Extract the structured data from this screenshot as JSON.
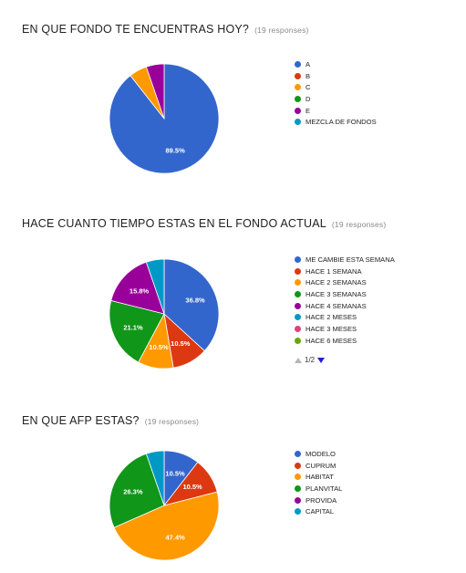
{
  "chart_data": [
    {
      "type": "pie",
      "title": "EN QUE FONDO TE ENCUENTRAS HOY?",
      "responses_label": "(19 responses)",
      "start_angle": 90,
      "legend_position": "right",
      "slices": [
        {
          "label": "A",
          "value": 89.5,
          "color": "#3366cc",
          "text": "89.5%"
        },
        {
          "label": "B",
          "value": 0,
          "color": "#dc3912",
          "text": ""
        },
        {
          "label": "C",
          "value": 5.3,
          "color": "#ff9900",
          "text": ""
        },
        {
          "label": "D",
          "value": 0,
          "color": "#109618",
          "text": ""
        },
        {
          "label": "E",
          "value": 5.3,
          "color": "#990099",
          "text": ""
        },
        {
          "label": "MEZCLA DE FONDOS",
          "value": 0,
          "color": "#0099c6",
          "text": ""
        }
      ]
    },
    {
      "type": "pie",
      "title": "HACE CUANTO TIEMPO ESTAS EN EL FONDO ACTUAL",
      "responses_label": "(19 responses)",
      "start_angle": 90,
      "legend_position": "right",
      "slices": [
        {
          "label": "ME CAMBIE ESTA SEMANA",
          "value": 36.8,
          "color": "#3366cc",
          "text": "36.8%"
        },
        {
          "label": "HACE 1 SEMANA",
          "value": 10.5,
          "color": "#dc3912",
          "text": "10.5%"
        },
        {
          "label": "HACE 2 SEMANAS",
          "value": 10.5,
          "color": "#ff9900",
          "text": "10.5%"
        },
        {
          "label": "HACE 3 SEMANAS",
          "value": 21.1,
          "color": "#109618",
          "text": "21.1%"
        },
        {
          "label": "HACE 4 SEMANAS",
          "value": 15.8,
          "color": "#990099",
          "text": "15.8%"
        },
        {
          "label": "HACE 2 MESES",
          "value": 5.3,
          "color": "#0099c6",
          "text": ""
        },
        {
          "label": "HACE 3 MESES",
          "value": 0,
          "color": "#dd4477",
          "text": ""
        },
        {
          "label": "HACE 6 MESES",
          "value": 0,
          "color": "#66aa00",
          "text": ""
        }
      ],
      "pager": "1/2"
    },
    {
      "type": "pie",
      "title": "EN QUE AFP ESTAS?",
      "responses_label": "(19 responses)",
      "start_angle": 90,
      "legend_position": "right",
      "slices": [
        {
          "label": "MODELO",
          "value": 10.5,
          "color": "#3366cc",
          "text": "10.5%"
        },
        {
          "label": "CUPRUM",
          "value": 10.5,
          "color": "#dc3912",
          "text": "10.5%"
        },
        {
          "label": "HABITAT",
          "value": 47.4,
          "color": "#ff9900",
          "text": "47.4%"
        },
        {
          "label": "PLANVITAL",
          "value": 26.3,
          "color": "#109618",
          "text": "26.3%"
        },
        {
          "label": "PROVIDA",
          "value": 0,
          "color": "#990099",
          "text": ""
        },
        {
          "label": "CAPITAL",
          "value": 5.3,
          "color": "#0099c6",
          "text": ""
        }
      ]
    }
  ]
}
